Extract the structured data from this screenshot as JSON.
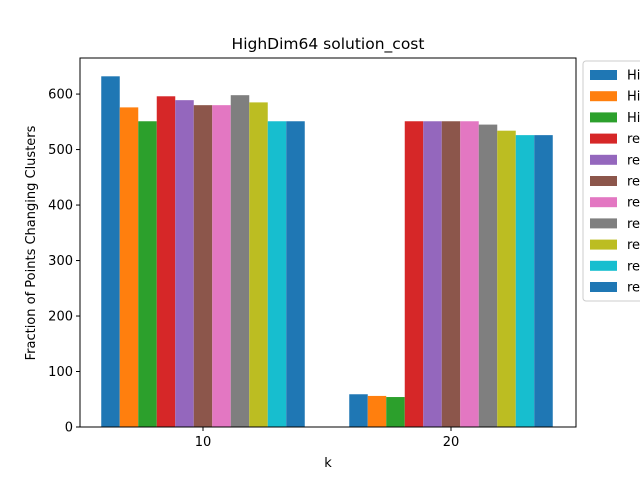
{
  "chart_data": {
    "type": "bar",
    "title": "HighDim64 solution_cost",
    "xlabel": "k",
    "ylabel": "Fraction of Points Changing Clusters",
    "categories": [
      "10",
      "20"
    ],
    "ylim": [
      0,
      665
    ],
    "yticks": [
      0,
      100,
      200,
      300,
      400,
      500,
      600
    ],
    "grid": false,
    "legend_position": "outside-right",
    "series": [
      {
        "name": "Hi",
        "color": "#1f77b4",
        "values": [
          632,
          59
        ]
      },
      {
        "name": "Hi",
        "color": "#ff7f0e",
        "values": [
          576,
          56
        ]
      },
      {
        "name": "Hi",
        "color": "#2ca02c",
        "values": [
          551,
          54
        ]
      },
      {
        "name": "re",
        "color": "#d62728",
        "values": [
          596,
          551
        ]
      },
      {
        "name": "re",
        "color": "#9467bd",
        "values": [
          589,
          551
        ]
      },
      {
        "name": "re",
        "color": "#8c564b",
        "values": [
          580,
          551
        ]
      },
      {
        "name": "re",
        "color": "#e377c2",
        "values": [
          580,
          551
        ]
      },
      {
        "name": "re",
        "color": "#7f7f7f",
        "values": [
          598,
          545
        ]
      },
      {
        "name": "re",
        "color": "#bcbd22",
        "values": [
          585,
          534
        ]
      },
      {
        "name": "re",
        "color": "#17becf",
        "values": [
          551,
          526
        ]
      },
      {
        "name": "re",
        "color": "#1f77b4",
        "values": [
          551,
          526
        ]
      }
    ]
  }
}
